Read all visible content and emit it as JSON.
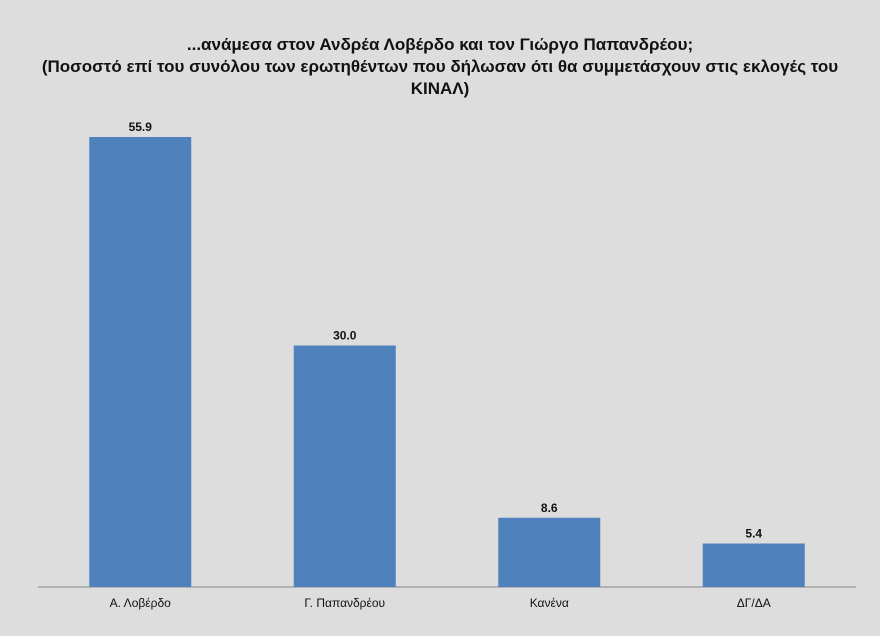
{
  "chart_data": {
    "type": "bar",
    "title": "...ανάμεσα στον Ανδρέα Λοβέρδο και τον Γιώργο Παπανδρέου;",
    "subtitle": "(Ποσοστό επί του συνόλου των ερωτηθέντων που δήλωσαν ότι θα συμμετάσχουν στις εκλογές του ΚΙΝΑΛ)",
    "categories": [
      "Α. Λοβέρδο",
      "Γ. Παπανδρέου",
      "Κανένα",
      "ΔΓ/ΔΑ"
    ],
    "values": [
      55.9,
      30.0,
      8.6,
      5.4
    ],
    "value_labels": [
      "55.9",
      "30.0",
      "8.6",
      "5.4"
    ],
    "color": "#4f81bd"
  }
}
